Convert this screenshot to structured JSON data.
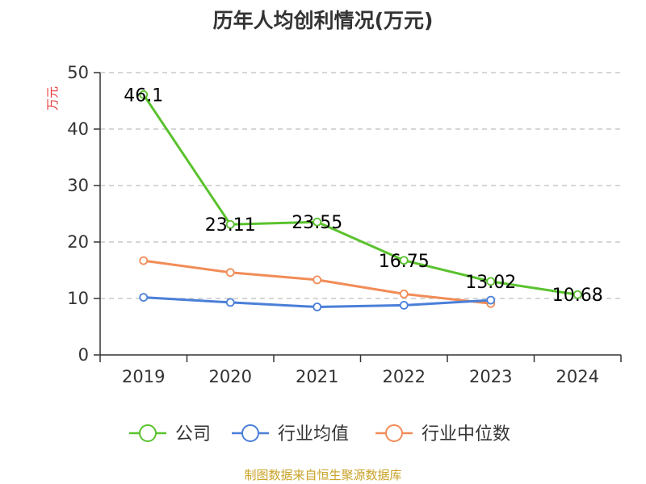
{
  "title": "历年人均创利情况(万元)",
  "source": "制图数据来自恒生聚源数据库",
  "chart_data": {
    "type": "line",
    "title": "历年人均创利情况(万元)",
    "xlabel": "",
    "ylabel": "万元",
    "ylim": [
      0,
      50
    ],
    "yticks": [
      0,
      10,
      20,
      30,
      40,
      50
    ],
    "grid": true,
    "legend_position": "bottom",
    "categories": [
      "2019",
      "2020",
      "2021",
      "2022",
      "2023",
      "2024"
    ],
    "series": [
      {
        "name": "公司",
        "color": "#5ac22e",
        "values": [
          46.1,
          23.11,
          23.55,
          16.75,
          13.02,
          10.68
        ],
        "labels": [
          "46.1",
          "23.11",
          "23.55",
          "16.75",
          "13.02",
          "10.68"
        ]
      },
      {
        "name": "行业均值",
        "color": "#4a7fd8",
        "values": [
          10.2,
          9.3,
          8.5,
          8.8,
          9.7,
          null
        ]
      },
      {
        "name": "行业中位数",
        "color": "#f28c57",
        "values": [
          16.7,
          14.6,
          13.3,
          10.8,
          9.1,
          null
        ]
      }
    ]
  }
}
